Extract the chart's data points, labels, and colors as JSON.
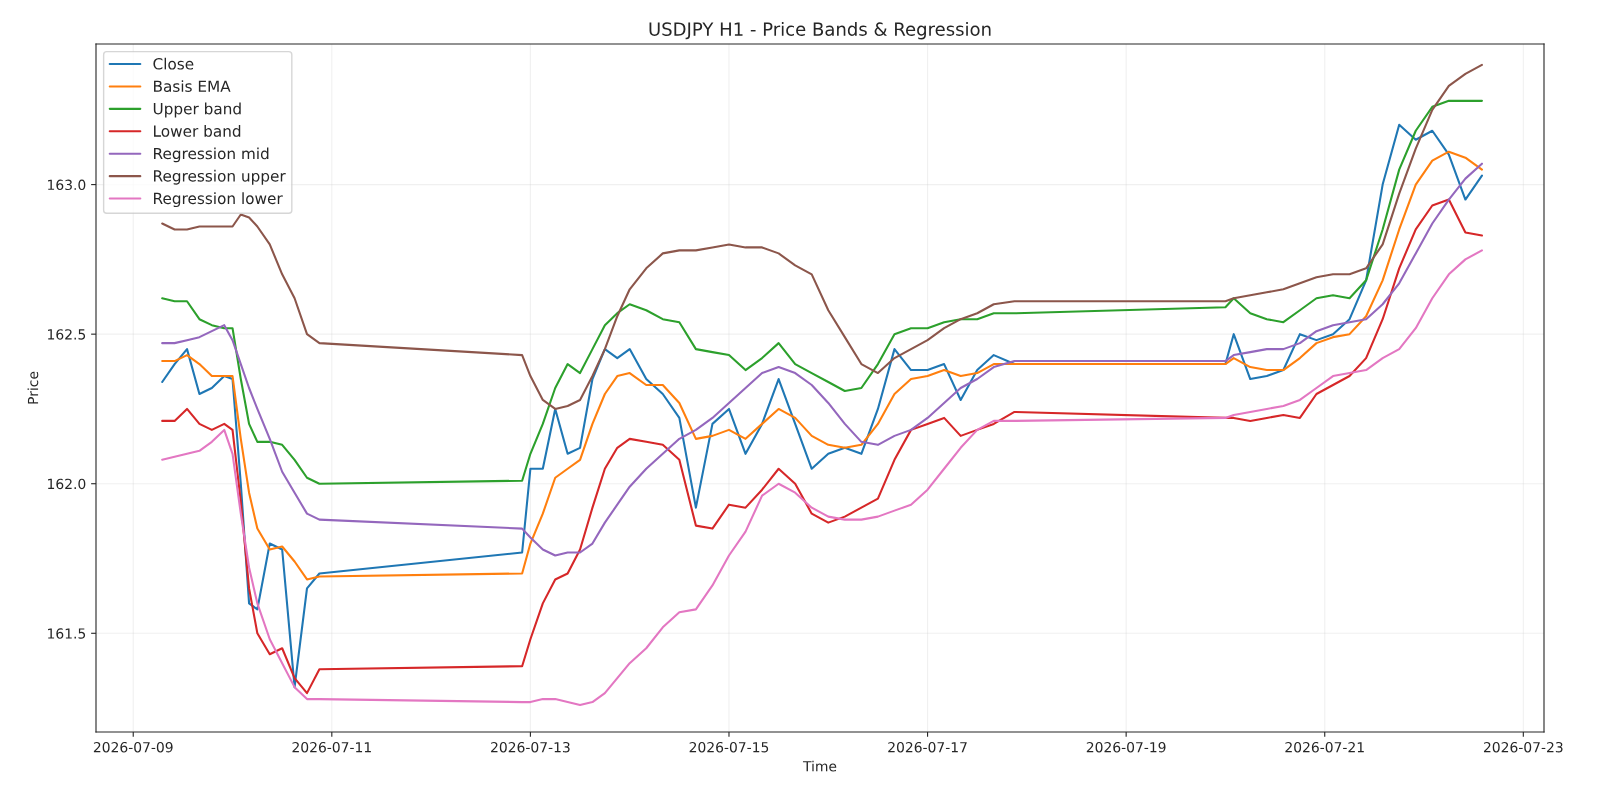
{
  "chart_data": {
    "type": "line",
    "title": "USDJPY H1 - Price Bands & Regression",
    "xlabel": "Time",
    "ylabel": "Price",
    "x": [
      "2026-07-09T07:00",
      "2026-07-09T10:00",
      "2026-07-09T13:00",
      "2026-07-09T16:00",
      "2026-07-09T19:00",
      "2026-07-09T22:00",
      "2026-07-10T00:00",
      "2026-07-10T02:00",
      "2026-07-10T04:00",
      "2026-07-10T06:00",
      "2026-07-10T09:00",
      "2026-07-10T12:00",
      "2026-07-10T15:00",
      "2026-07-10T18:00",
      "2026-07-10T21:00",
      "2026-07-12T22:00",
      "2026-07-13T00:00",
      "2026-07-13T03:00",
      "2026-07-13T06:00",
      "2026-07-13T09:00",
      "2026-07-13T12:00",
      "2026-07-13T15:00",
      "2026-07-13T18:00",
      "2026-07-13T21:00",
      "2026-07-14T00:00",
      "2026-07-14T04:00",
      "2026-07-14T08:00",
      "2026-07-14T12:00",
      "2026-07-14T16:00",
      "2026-07-14T20:00",
      "2026-07-15T00:00",
      "2026-07-15T04:00",
      "2026-07-15T08:00",
      "2026-07-15T12:00",
      "2026-07-15T16:00",
      "2026-07-15T20:00",
      "2026-07-16T00:00",
      "2026-07-16T04:00",
      "2026-07-16T08:00",
      "2026-07-16T12:00",
      "2026-07-16T16:00",
      "2026-07-16T20:00",
      "2026-07-17T00:00",
      "2026-07-17T04:00",
      "2026-07-17T08:00",
      "2026-07-17T12:00",
      "2026-07-17T16:00",
      "2026-07-17T21:00",
      "2026-07-20T00:00",
      "2026-07-20T02:00",
      "2026-07-20T06:00",
      "2026-07-20T10:00",
      "2026-07-20T14:00",
      "2026-07-20T18:00",
      "2026-07-20T22:00",
      "2026-07-21T02:00",
      "2026-07-21T06:00",
      "2026-07-21T10:00",
      "2026-07-21T14:00",
      "2026-07-21T18:00",
      "2026-07-21T22:00",
      "2026-07-22T02:00",
      "2026-07-22T06:00",
      "2026-07-22T10:00",
      "2026-07-22T14:00"
    ],
    "series": [
      {
        "name": "Close",
        "color": "#1f77b4",
        "values": [
          162.34,
          162.4,
          162.45,
          162.3,
          162.32,
          162.36,
          162.35,
          162.0,
          161.6,
          161.58,
          161.8,
          161.78,
          161.32,
          161.65,
          161.7,
          161.77,
          162.05,
          162.05,
          162.25,
          162.1,
          162.12,
          162.35,
          162.45,
          162.42,
          162.45,
          162.35,
          162.3,
          162.22,
          161.92,
          162.2,
          162.25,
          162.1,
          162.2,
          162.35,
          162.2,
          162.05,
          162.1,
          162.12,
          162.1,
          162.25,
          162.45,
          162.38,
          162.38,
          162.4,
          162.28,
          162.38,
          162.43,
          162.4,
          162.4,
          162.5,
          162.35,
          162.36,
          162.38,
          162.5,
          162.48,
          162.5,
          162.55,
          162.68,
          163.0,
          163.2,
          163.15,
          163.18,
          163.1,
          162.95,
          163.03
        ]
      },
      {
        "name": "Basis EMA",
        "color": "#ff7f0e",
        "values": [
          162.41,
          162.41,
          162.43,
          162.4,
          162.36,
          162.36,
          162.36,
          162.15,
          161.97,
          161.85,
          161.78,
          161.79,
          161.74,
          161.68,
          161.69,
          161.7,
          161.8,
          161.9,
          162.02,
          162.05,
          162.08,
          162.2,
          162.3,
          162.36,
          162.37,
          162.33,
          162.33,
          162.27,
          162.15,
          162.16,
          162.18,
          162.15,
          162.2,
          162.25,
          162.22,
          162.16,
          162.13,
          162.12,
          162.13,
          162.2,
          162.3,
          162.35,
          162.36,
          162.38,
          162.36,
          162.37,
          162.4,
          162.4,
          162.4,
          162.42,
          162.39,
          162.38,
          162.38,
          162.42,
          162.47,
          162.49,
          162.5,
          162.56,
          162.68,
          162.85,
          163.0,
          163.08,
          163.11,
          163.09,
          163.05
        ]
      },
      {
        "name": "Upper band",
        "color": "#2ca02c",
        "values": [
          162.62,
          162.61,
          162.61,
          162.55,
          162.53,
          162.52,
          162.52,
          162.35,
          162.2,
          162.14,
          162.14,
          162.13,
          162.08,
          162.02,
          162.0,
          162.01,
          162.1,
          162.2,
          162.32,
          162.4,
          162.37,
          162.45,
          162.53,
          162.57,
          162.6,
          162.58,
          162.55,
          162.54,
          162.45,
          162.44,
          162.43,
          162.38,
          162.42,
          162.47,
          162.4,
          162.37,
          162.34,
          162.31,
          162.32,
          162.4,
          162.5,
          162.52,
          162.52,
          162.54,
          162.55,
          162.55,
          162.57,
          162.57,
          162.59,
          162.62,
          162.57,
          162.55,
          162.54,
          162.58,
          162.62,
          162.63,
          162.62,
          162.68,
          162.85,
          163.05,
          163.18,
          163.26,
          163.28,
          163.28,
          163.28
        ]
      },
      {
        "name": "Lower band",
        "color": "#d62728",
        "values": [
          162.21,
          162.21,
          162.25,
          162.2,
          162.18,
          162.2,
          162.18,
          161.94,
          161.65,
          161.5,
          161.43,
          161.45,
          161.35,
          161.3,
          161.38,
          161.39,
          161.48,
          161.6,
          161.68,
          161.7,
          161.78,
          161.92,
          162.05,
          162.12,
          162.15,
          162.14,
          162.13,
          162.08,
          161.86,
          161.85,
          161.93,
          161.92,
          161.98,
          162.05,
          162.0,
          161.9,
          161.87,
          161.89,
          161.92,
          161.95,
          162.08,
          162.18,
          162.2,
          162.22,
          162.16,
          162.18,
          162.2,
          162.24,
          162.22,
          162.22,
          162.21,
          162.22,
          162.23,
          162.22,
          162.3,
          162.33,
          162.36,
          162.42,
          162.55,
          162.72,
          162.85,
          162.93,
          162.95,
          162.84,
          162.83
        ]
      },
      {
        "name": "Regression mid",
        "color": "#9467bd",
        "values": [
          162.47,
          162.47,
          162.48,
          162.49,
          162.51,
          162.53,
          162.48,
          162.4,
          162.32,
          162.25,
          162.15,
          162.04,
          161.97,
          161.9,
          161.88,
          161.85,
          161.82,
          161.78,
          161.76,
          161.77,
          161.77,
          161.8,
          161.87,
          161.93,
          161.99,
          162.05,
          162.1,
          162.15,
          162.18,
          162.22,
          162.27,
          162.32,
          162.37,
          162.39,
          162.37,
          162.33,
          162.27,
          162.2,
          162.14,
          162.13,
          162.16,
          162.18,
          162.22,
          162.27,
          162.32,
          162.35,
          162.39,
          162.41,
          162.41,
          162.43,
          162.44,
          162.45,
          162.45,
          162.47,
          162.51,
          162.53,
          162.54,
          162.55,
          162.6,
          162.67,
          162.77,
          162.87,
          162.95,
          163.02,
          163.07
        ]
      },
      {
        "name": "Regression upper",
        "color": "#8c564b",
        "values": [
          162.87,
          162.85,
          162.85,
          162.86,
          162.86,
          162.86,
          162.86,
          162.9,
          162.89,
          162.86,
          162.8,
          162.7,
          162.62,
          162.5,
          162.47,
          162.43,
          162.36,
          162.28,
          162.25,
          162.26,
          162.28,
          162.36,
          162.45,
          162.56,
          162.65,
          162.72,
          162.77,
          162.78,
          162.78,
          162.79,
          162.8,
          162.79,
          162.79,
          162.77,
          162.73,
          162.7,
          162.58,
          162.49,
          162.4,
          162.37,
          162.42,
          162.45,
          162.48,
          162.52,
          162.55,
          162.57,
          162.6,
          162.61,
          162.61,
          162.62,
          162.63,
          162.64,
          162.65,
          162.67,
          162.69,
          162.7,
          162.7,
          162.72,
          162.8,
          162.97,
          163.12,
          163.25,
          163.33,
          163.37,
          163.4
        ]
      },
      {
        "name": "Regression lower",
        "color": "#e377c2",
        "values": [
          162.08,
          162.09,
          162.1,
          162.11,
          162.14,
          162.18,
          162.1,
          161.9,
          161.72,
          161.6,
          161.48,
          161.4,
          161.32,
          161.28,
          161.28,
          161.27,
          161.27,
          161.28,
          161.28,
          161.27,
          161.26,
          161.27,
          161.3,
          161.35,
          161.4,
          161.45,
          161.52,
          161.57,
          161.58,
          161.66,
          161.76,
          161.84,
          161.96,
          162.0,
          161.97,
          161.92,
          161.89,
          161.88,
          161.88,
          161.89,
          161.91,
          161.93,
          161.98,
          162.05,
          162.12,
          162.18,
          162.21,
          162.21,
          162.22,
          162.23,
          162.24,
          162.25,
          162.26,
          162.28,
          162.32,
          162.36,
          162.37,
          162.38,
          162.42,
          162.45,
          162.52,
          162.62,
          162.7,
          162.75,
          162.78
        ]
      }
    ],
    "xlim": [
      "2026-07-08T15:00",
      "2026-07-23T05:00"
    ],
    "xticks": [
      "2026-07-09",
      "2026-07-11",
      "2026-07-13",
      "2026-07-15",
      "2026-07-17",
      "2026-07-19",
      "2026-07-21",
      "2026-07-23"
    ],
    "ylim": [
      161.17,
      163.47
    ],
    "yticks": [
      161.5,
      {
        "value": 162,
        "label": "162.0"
      },
      162.5,
      {
        "value": 163,
        "label": "163.0"
      }
    ],
    "grid": true,
    "legend": "top left",
    "marker": "none",
    "line_style": "solid"
  }
}
